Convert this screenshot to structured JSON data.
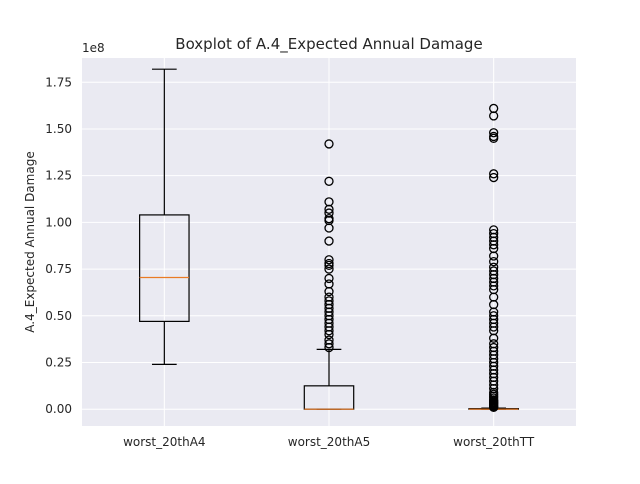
{
  "chart_data": {
    "type": "boxplot",
    "title": "Boxplot of A.4_Expected Annual Damage",
    "xlabel": "",
    "ylabel": "A.4_Expected Annual Damage",
    "y_scale_label": "1e8",
    "y_unit_multiplier": 100000000,
    "ylim": [
      -0.09,
      1.88
    ],
    "y_ticks": [
      0.0,
      0.25,
      0.5,
      0.75,
      1.0,
      1.25,
      1.5,
      1.75
    ],
    "y_tick_labels": [
      "0.00",
      "0.25",
      "0.50",
      "0.75",
      "1.00",
      "1.25",
      "1.50",
      "1.75"
    ],
    "grid": true,
    "categories": [
      "worst_20thA4",
      "worst_20thA5",
      "worst_20thTT"
    ],
    "boxes": [
      {
        "name": "worst_20thA4",
        "whisker_low": 0.24,
        "q1": 0.47,
        "median": 0.705,
        "q3": 1.04,
        "whisker_high": 1.82,
        "fliers": []
      },
      {
        "name": "worst_20thA5",
        "whisker_low": 0.0,
        "q1": 0.0,
        "median": 0.0,
        "q3": 0.125,
        "whisker_high": 0.32,
        "fliers": [
          1.42,
          1.22,
          1.11,
          1.07,
          1.05,
          1.02,
          1.01,
          0.97,
          0.9,
          0.8,
          0.78,
          0.77,
          0.75,
          0.7,
          0.67,
          0.63,
          0.6,
          0.58,
          0.56,
          0.54,
          0.52,
          0.5,
          0.48,
          0.46,
          0.44,
          0.42,
          0.4,
          0.37,
          0.35,
          0.33
        ]
      },
      {
        "name": "worst_20thTT",
        "whisker_low": 0.0,
        "q1": 0.0,
        "median": 0.0,
        "q3": 0.003,
        "whisker_high": 0.006,
        "fliers": [
          1.61,
          1.57,
          1.48,
          1.46,
          1.45,
          1.26,
          1.24,
          0.96,
          0.94,
          0.92,
          0.9,
          0.88,
          0.86,
          0.82,
          0.79,
          0.76,
          0.74,
          0.72,
          0.7,
          0.68,
          0.66,
          0.64,
          0.6,
          0.56,
          0.52,
          0.5,
          0.48,
          0.46,
          0.44,
          0.42,
          0.38,
          0.35,
          0.33,
          0.31,
          0.29,
          0.27,
          0.25,
          0.23,
          0.21,
          0.19,
          0.17,
          0.15,
          0.13,
          0.11,
          0.09,
          0.08,
          0.07,
          0.06,
          0.05,
          0.045,
          0.04,
          0.035,
          0.03,
          0.025,
          0.02,
          0.015,
          0.012,
          0.01
        ]
      }
    ],
    "colors": {
      "plot_background": "#eaeaf2",
      "grid": "#ffffff",
      "box": "#000000",
      "median": "#e97b25"
    }
  }
}
